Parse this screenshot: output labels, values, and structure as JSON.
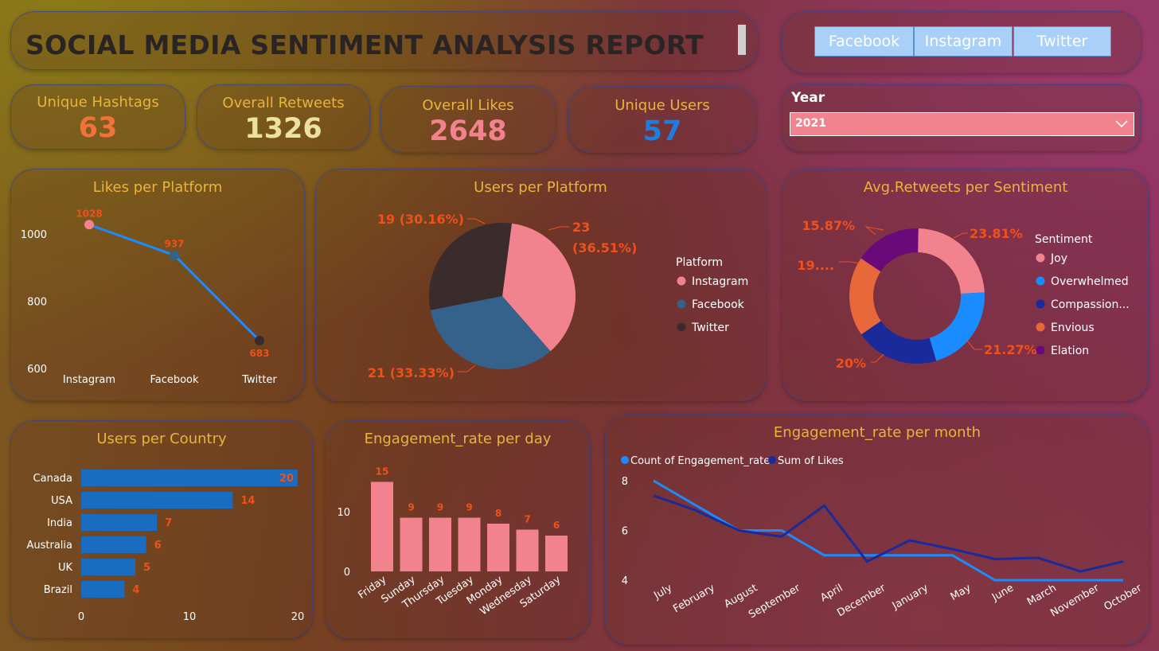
{
  "header": {
    "title": "SOCIAL MEDIA SENTIMENT ANALYSIS REPORT"
  },
  "platform_buttons": [
    "Facebook",
    "Instagram",
    "Twitter"
  ],
  "kpis": {
    "hashtags": {
      "label": "Unique Hashtags",
      "value": "63",
      "color": "#f2703a"
    },
    "retweets": {
      "label": "Overall Retweets",
      "value": "1326",
      "color": "#ece2a0"
    },
    "likes": {
      "label": "Overall Likes",
      "value": "2648",
      "color": "#f2838e"
    },
    "users": {
      "label": "Unique Users",
      "value": "57",
      "color": "#1a7fe0"
    }
  },
  "filter": {
    "label": "Year",
    "value": "2021"
  },
  "colors": {
    "title": "#e8b43c",
    "label_orange": "#f0501a",
    "pink": "#f2838e",
    "steel_blue": "#34628a",
    "dark": "#3a2c2c",
    "bright_blue": "#1a8cff",
    "navy": "#1a2a9a",
    "orange": "#e8683a",
    "purple": "#6a0a7a",
    "bar_blue": "#1a6cc0"
  },
  "chart_data": [
    {
      "type": "line",
      "title": "Likes per Platform",
      "categories": [
        "Instagram",
        "Facebook",
        "Twitter"
      ],
      "values": [
        1028,
        937,
        683
      ],
      "point_colors": [
        "#f2838e",
        "#34628a",
        "#3a2c2c"
      ],
      "ylim": [
        600,
        1050
      ],
      "yticks": [
        600,
        800,
        1000
      ]
    },
    {
      "type": "pie",
      "title": "Users per Platform",
      "legend_title": "Platform",
      "slices": [
        {
          "name": "Instagram",
          "value": 23,
          "label": "23 (36.51%)",
          "color": "#f2838e"
        },
        {
          "name": "Facebook",
          "value": 21,
          "label": "21 (33.33%)",
          "color": "#34628a"
        },
        {
          "name": "Twitter",
          "value": 19,
          "label": "19 (30.16%)",
          "color": "#3a2c2c"
        }
      ]
    },
    {
      "type": "pie",
      "title": "Avg.Retweets per Sentiment",
      "legend_title": "Sentiment",
      "slices": [
        {
          "name": "Joy",
          "value": 23.81,
          "label": "23.81%",
          "color": "#f2838e"
        },
        {
          "name": "Overwhelmed",
          "value": 21.27,
          "label": "21.27%",
          "color": "#1a8cff"
        },
        {
          "name": "Compassion...",
          "value": 20,
          "label": "20%",
          "color": "#1a2a9a"
        },
        {
          "name": "Envious",
          "value": 19.05,
          "label": "19....",
          "color": "#e8683a"
        },
        {
          "name": "Elation",
          "value": 15.87,
          "label": "15.87%",
          "color": "#6a0a7a"
        }
      ]
    },
    {
      "type": "bar",
      "title": "Users per Country",
      "categories": [
        "Canada",
        "USA",
        "India",
        "Australia",
        "UK",
        "Brazil"
      ],
      "values": [
        20,
        14,
        7,
        6,
        5,
        4
      ],
      "xlim": [
        0,
        20
      ],
      "xticks": [
        0,
        10,
        20
      ]
    },
    {
      "type": "bar",
      "title": "Engagement_rate per day",
      "categories": [
        "Friday",
        "Sunday",
        "Thursday",
        "Tuesday",
        "Monday",
        "Wednesday",
        "Saturday"
      ],
      "values": [
        15,
        9,
        9,
        9,
        8,
        7,
        6
      ],
      "ylim": [
        0,
        16
      ],
      "yticks": [
        0,
        10
      ]
    },
    {
      "type": "line",
      "title": "Engagement_rate per month",
      "categories": [
        "July",
        "February",
        "August",
        "September",
        "April",
        "December",
        "January",
        "May",
        "June",
        "March",
        "November",
        "October"
      ],
      "series": [
        {
          "name": "Count of Engagement_rate",
          "values": [
            8,
            7,
            6,
            6,
            5,
            5,
            5,
            5,
            4,
            4,
            4,
            4
          ],
          "color": "#1a8cff"
        },
        {
          "name": "Sum of Likes",
          "values": [
            7.4,
            6.8,
            6.0,
            5.75,
            7.0,
            4.75,
            5.6,
            5.25,
            4.85,
            4.9,
            4.35,
            4.75
          ],
          "color": "#1a2a9a"
        }
      ],
      "ylim": [
        4,
        8
      ],
      "yticks": [
        4,
        6,
        8
      ]
    }
  ]
}
